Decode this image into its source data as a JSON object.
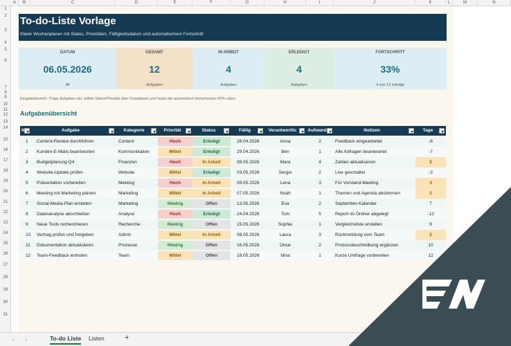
{
  "columns": [
    "A",
    "B",
    "C",
    "D",
    "E",
    "F",
    "G",
    "H",
    "I",
    "J",
    "K",
    "L",
    "M",
    "N"
  ],
  "rows": [
    "1",
    "2",
    "3",
    "4",
    "5",
    "6",
    "7",
    "8",
    "9",
    "10",
    "11",
    "12",
    "13",
    "14",
    "15",
    "16",
    "17",
    "18",
    "19",
    "20",
    "21",
    "22",
    "23",
    "24",
    "25",
    "26",
    "27",
    "28",
    "29",
    "30",
    "31"
  ],
  "header": {
    "title": "To-do-Liste Vorlage",
    "subtitle": "Klarer Wochenplaner mit Status, Prioritäten, Fälligkeitsdatum und automatischem Fortschritt"
  },
  "kpis": {
    "date": {
      "label": "DATUM",
      "value": "06.05.2026",
      "sub": "Mi",
      "color": "#dcedf3"
    },
    "total": {
      "label": "GESAMT",
      "value": "12",
      "sub": "Aufgaben",
      "color": "#f3e1c8"
    },
    "active": {
      "label": "IN ARBEIT",
      "value": "4",
      "sub": "Aufgaben",
      "color": "#dcedf3"
    },
    "done": {
      "label": "ERLEDIGT",
      "value": "4",
      "sub": "Aufgaben",
      "color": "#dcede3"
    },
    "progress": {
      "label": "FORTSCHRITT",
      "value": "33%",
      "sub": "4 von 12 erledigt",
      "color": "#dcedf3"
    }
  },
  "note": "Eingabebereich: Trage Aufgaben ein, wähle Status/Priorität über Dropdowns und nutze die automatisch berechneten KPIs oben.",
  "section_title": "Aufgabenübersicht",
  "table": {
    "headers": [
      "Nr",
      "Aufgabe",
      "Kategorie",
      "Priorität",
      "Status",
      "Fällig",
      "Verantwortlic",
      "Aufwand",
      "Notizen",
      "Tage"
    ],
    "rows": [
      {
        "nr": "1",
        "task": "Content-Review durchführen",
        "cat": "Content",
        "prio": "Hoch",
        "status": "Erledigt",
        "due": "28.04.2026",
        "owner": "Anna",
        "effort": "2",
        "note": "Feedback eingearbeitet",
        "days": "-8",
        "highlight": false
      },
      {
        "nr": "2",
        "task": "Kunden-E-Mails beantworten",
        "cat": "Kommunikation",
        "prio": "Mittel",
        "status": "Erledigt",
        "due": "29.04.2026",
        "owner": "Ben",
        "effort": "1",
        "note": "Alle Anfragen beantwortet",
        "days": "-7",
        "highlight": false
      },
      {
        "nr": "3",
        "task": "Budgetplanung Q4",
        "cat": "Finanzen",
        "prio": "Hoch",
        "status": "In Arbeit",
        "due": "08.05.2026",
        "owner": "Mara",
        "effort": "4",
        "note": "Zahlen aktualisieren",
        "days": "2",
        "highlight": true
      },
      {
        "nr": "4",
        "task": "Website-Update prüfen",
        "cat": "Website",
        "prio": "Mittel",
        "status": "Erledigt",
        "due": "03.05.2026",
        "owner": "Sergio",
        "effort": "2",
        "note": "Live geschaltet",
        "days": "-3",
        "highlight": false
      },
      {
        "nr": "5",
        "task": "Präsentation vorbereiten",
        "cat": "Meeting",
        "prio": "Hoch",
        "status": "In Arbeit",
        "due": "09.05.2026",
        "owner": "Lena",
        "effort": "3",
        "note": "Für Vorstand-Meeting",
        "days": "3",
        "highlight": true
      },
      {
        "nr": "6",
        "task": "Meeting mit Marketing planen",
        "cat": "Marketing",
        "prio": "Mittel",
        "status": "In Arbeit",
        "due": "07.05.2026",
        "owner": "Noah",
        "effort": "1",
        "note": "Themen und Agenda abstimmen",
        "days": "1",
        "highlight": true
      },
      {
        "nr": "7",
        "task": "Social-Media-Plan erstellen",
        "cat": "Marketing",
        "prio": "Niedrig",
        "status": "Offen",
        "due": "13.05.2026",
        "owner": "Eva",
        "effort": "2",
        "note": "September-Kalender",
        "days": "7",
        "highlight": false
      },
      {
        "nr": "8",
        "task": "Datenanalyse abschließen",
        "cat": "Analyse",
        "prio": "Hoch",
        "status": "Erledigt",
        "due": "24.04.2026",
        "owner": "Tom",
        "effort": "5",
        "note": "Report im Ordner abgelegt",
        "days": "-12",
        "highlight": false
      },
      {
        "nr": "9",
        "task": "Neue Tools recherchieren",
        "cat": "Recherche",
        "prio": "Niedrig",
        "status": "Offen",
        "due": "15.05.2026",
        "owner": "Sophie",
        "effort": "1",
        "note": "Vergleichsliste erstellen",
        "days": "9",
        "highlight": false
      },
      {
        "nr": "10",
        "task": "Vertrag prüfen und freigeben",
        "cat": "Admin",
        "prio": "Mittel",
        "status": "In Arbeit",
        "due": "08.05.2026",
        "owner": "Laura",
        "effort": "3",
        "note": "Rückmeldung vom Team",
        "days": "2",
        "highlight": true
      },
      {
        "nr": "11",
        "task": "Dokumentation aktualisieren",
        "cat": "Prozesse",
        "prio": "Niedrig",
        "status": "Offen",
        "due": "16.05.2026",
        "owner": "Omar",
        "effort": "2",
        "note": "Prozessbeschreibung ergänzen",
        "days": "10",
        "highlight": false
      },
      {
        "nr": "12",
        "task": "Team-Feedback einholen",
        "cat": "Team",
        "prio": "Mittel",
        "status": "Offen",
        "due": "18.05.2026",
        "owner": "Nina",
        "effort": "1",
        "note": "Kurze Umfrage vorbereiten",
        "days": "12",
        "highlight": false
      }
    ]
  },
  "tabs": [
    "To-do Liste",
    "Listen"
  ],
  "add_tab_label": "+",
  "nav_prev": "‹",
  "nav_next": "›",
  "logo_text": "EW"
}
